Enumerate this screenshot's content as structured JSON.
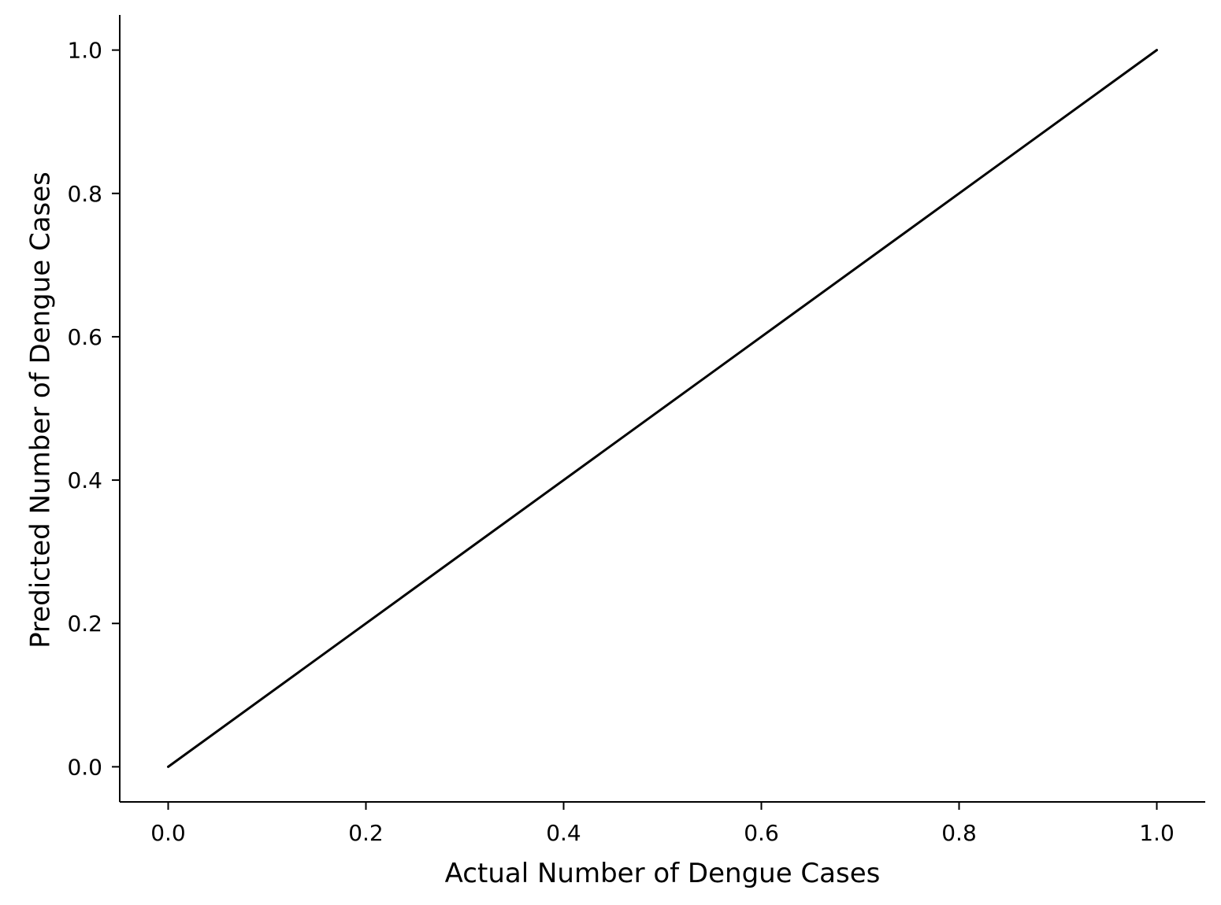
{
  "chart_data": {
    "type": "line",
    "title": "",
    "xlabel": "Actual Number of Dengue Cases",
    "ylabel": "Predicted Number of Dengue Cases",
    "xlim": [
      -0.049,
      1.049
    ],
    "ylim": [
      -0.049,
      1.049
    ],
    "xticks": [
      0.0,
      0.2,
      0.4,
      0.6,
      0.8,
      1.0
    ],
    "yticks": [
      0.0,
      0.2,
      0.4,
      0.6,
      0.8,
      1.0
    ],
    "xtick_labels": [
      "0.0",
      "0.2",
      "0.4",
      "0.6",
      "0.8",
      "1.0"
    ],
    "ytick_labels": [
      "0.0",
      "0.2",
      "0.4",
      "0.6",
      "0.8",
      "1.0"
    ],
    "grid": false,
    "legend": "none",
    "series": [
      {
        "color": "#000000",
        "x": [
          0.0,
          1.0
        ],
        "y": [
          0.0,
          1.0
        ]
      }
    ]
  }
}
